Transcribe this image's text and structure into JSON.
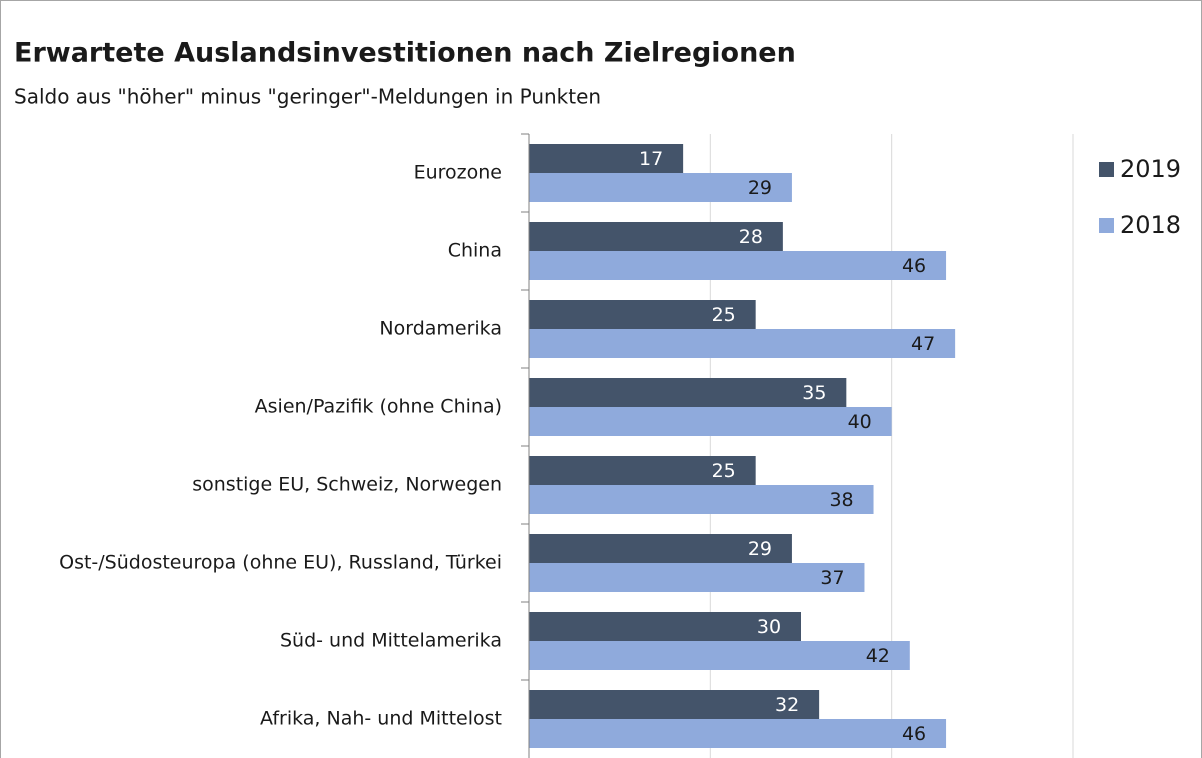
{
  "chart_data": {
    "type": "hbar",
    "title": "Erwartete Auslandsinvestitionen nach Zielregionen",
    "subtitle": "Saldo aus \"höher\" minus \"geringer\"-Meldungen in Punkten",
    "categories": [
      "Eurozone",
      "China",
      "Nordamerika",
      "Asien/Pazifik (ohne China)",
      "sonstige EU, Schweiz, Norwegen",
      "Ost-/Südosteuropa (ohne EU), Russland, Türkei",
      "Süd- und Mittelamerika",
      "Afrika, Nah- und Mittelost"
    ],
    "series": [
      {
        "name": "2019",
        "color": "#44546a",
        "values": [
          17,
          28,
          25,
          35,
          25,
          29,
          30,
          32
        ]
      },
      {
        "name": "2018",
        "color": "#8faadc",
        "values": [
          29,
          46,
          47,
          40,
          38,
          37,
          42,
          46
        ]
      }
    ],
    "xlim": [
      0,
      60
    ],
    "xticks": [
      0,
      20,
      40,
      60
    ],
    "grid": true,
    "legend": "right"
  }
}
